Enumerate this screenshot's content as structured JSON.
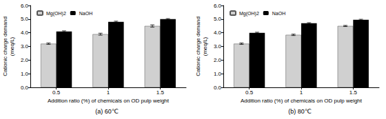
{
  "chart_data": [
    {
      "type": "bar",
      "title": "(a) 60℃",
      "x_label": "Addition ratio (%) of chemicals on OD pulp weight",
      "y_label": "Cationic charge demand (meq/L)",
      "categories": [
        "0.5",
        "1",
        "1.5"
      ],
      "series": [
        {
          "name": "Mg(OH)2",
          "color": "#d0d0d0",
          "values": [
            3.2,
            3.9,
            4.5
          ],
          "errors": [
            0.05,
            0.07,
            0.08
          ]
        },
        {
          "name": "NaOH",
          "color": "#000000",
          "values": [
            4.1,
            4.8,
            5.0
          ],
          "errors": [
            0.04,
            0.05,
            0.04
          ]
        }
      ],
      "ylim": [
        0,
        6
      ],
      "yticks": [
        {
          "value": 0,
          "label": "0.0"
        },
        {
          "value": 1,
          "label": "1.0"
        },
        {
          "value": 2,
          "label": "2.0"
        },
        {
          "value": 3,
          "label": "3.0"
        },
        {
          "value": 4,
          "label": "4.0"
        },
        {
          "value": 5,
          "label": "5.0"
        },
        {
          "value": 6,
          "label": "6.0"
        }
      ],
      "grid": false,
      "legend": "upper left"
    },
    {
      "type": "bar",
      "title": "(b) 80℃",
      "x_label": "Addition ratio (%) of chemicals on OD pulp weight",
      "y_label": "Cationic charge demand (meq/L)",
      "categories": [
        "0.5",
        "1",
        "1.5"
      ],
      "series": [
        {
          "name": "Mg(OH)2",
          "color": "#d0d0d0",
          "values": [
            3.2,
            3.85,
            4.5
          ],
          "errors": [
            0.05,
            0.05,
            0.04
          ]
        },
        {
          "name": "NaOH",
          "color": "#000000",
          "values": [
            4.0,
            4.7,
            4.95
          ],
          "errors": [
            0.04,
            0.04,
            0.04
          ]
        }
      ],
      "ylim": [
        0,
        6
      ],
      "yticks": [
        {
          "value": 0,
          "label": "0.0"
        },
        {
          "value": 1,
          "label": "1.0"
        },
        {
          "value": 2,
          "label": "2.0"
        },
        {
          "value": 3,
          "label": "3.0"
        },
        {
          "value": 4,
          "label": "4.0"
        },
        {
          "value": 5,
          "label": "5.0"
        },
        {
          "value": 6,
          "label": "6.0"
        }
      ],
      "grid": false,
      "legend": "upper left"
    }
  ]
}
